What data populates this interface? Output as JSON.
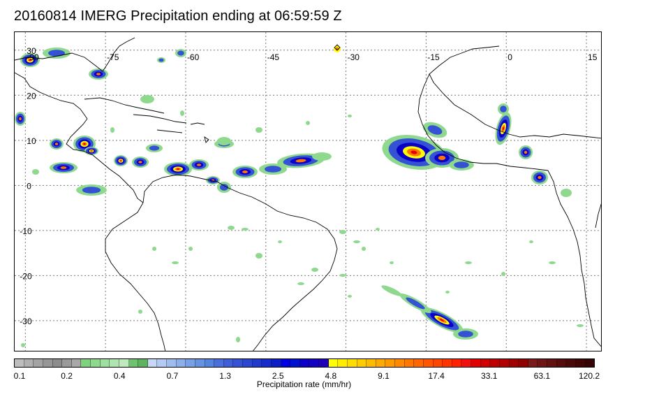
{
  "title": "20160814 IMERG Precipitation ending at 06:59:59 Z",
  "map": {
    "lon_labels": [
      "-90",
      "-75",
      "-60",
      "-45",
      "-30",
      "-15",
      "0",
      "15"
    ],
    "lat_labels": [
      "30",
      "20",
      "10",
      "0",
      "-10",
      "-20",
      "-30"
    ],
    "extent": {
      "lon_min": -92,
      "lon_max": 18,
      "lat_min": -37,
      "lat_max": 34
    }
  },
  "colorbar": {
    "label": "Precipitation rate (mm/hr)",
    "ticks": [
      "0.1",
      "0.2",
      "0.4",
      "0.7",
      "1.3",
      "2.5",
      "4.8",
      "9.1",
      "17.4",
      "33.1",
      "63.1",
      "120.2"
    ],
    "colors": [
      "#bdbdbd",
      "#b0b0b0",
      "#a3a3a3",
      "#969696",
      "#8c8c8c",
      "#9a9a9a",
      "#a8a8a8",
      "#7fd37f",
      "#8fd98f",
      "#9fdf9f",
      "#afe5af",
      "#bfeabf",
      "#6fc36f",
      "#5fb35f",
      "#c6d8f5",
      "#b3caf2",
      "#9fbcee",
      "#8caeea",
      "#79a0e6",
      "#6692e2",
      "#5384de",
      "#4a6fdc",
      "#3f5fd8",
      "#3552d4",
      "#2b46d0",
      "#2139cc",
      "#172cc8",
      "#0d1fc4",
      "#0000e0",
      "#0010d0",
      "#0a00c8",
      "#1400c0",
      "#1e00b8",
      "#ffff00",
      "#ffee00",
      "#ffdd00",
      "#ffcc00",
      "#ffbb00",
      "#ffaa00",
      "#ff9900",
      "#ff8800",
      "#ff7700",
      "#ff6600",
      "#ff5500",
      "#ff4400",
      "#ff3300",
      "#ff2200",
      "#f01010",
      "#e00000",
      "#d00000",
      "#c00000",
      "#b00000",
      "#a00000",
      "#900000",
      "#7a1a1a",
      "#6e1414",
      "#621010",
      "#560c0c",
      "#4a0808",
      "#400606",
      "#360404"
    ]
  },
  "legend_colors": {
    "light_green": "#8fd98f",
    "blue": "#3552d4",
    "dark_blue": "#0a00c8",
    "yellow": "#ffff00",
    "orange": "#ff7700",
    "red": "#e00000"
  }
}
